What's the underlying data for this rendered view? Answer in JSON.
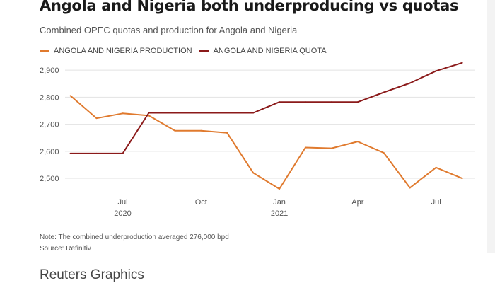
{
  "title": "Angola and Nigeria both underproducing vs quotas",
  "subtitle": "Combined OPEC quotas and production for Angola and Nigeria",
  "note": "Note: The combined underproduction averaged 276,000 bpd",
  "source": "Source: Refinitiv",
  "credit": "Reuters Graphics",
  "colors": {
    "production": "#e07a2e",
    "quota": "#8b1a1a",
    "grid": "#e2e2e2",
    "gutter": "#f3f3f3"
  },
  "chart_data": {
    "type": "line",
    "title": "Angola and Nigeria both underproducing vs quotas",
    "subtitle": "Combined OPEC quotas and production for Angola and Nigeria",
    "legend_placement": "top-left",
    "grid": true,
    "x_ticks": [
      {
        "label": "Jul",
        "sublabel": "2020",
        "index": 2
      },
      {
        "label": "Oct",
        "sublabel": "",
        "index": 5
      },
      {
        "label": "Jan",
        "sublabel": "2021",
        "index": 8
      },
      {
        "label": "Apr",
        "sublabel": "",
        "index": 11
      },
      {
        "label": "Jul",
        "sublabel": "",
        "index": 14
      }
    ],
    "y_ticks": [
      {
        "value": 2500,
        "label": "2,500"
      },
      {
        "value": 2600,
        "label": "2,600"
      },
      {
        "value": 2700,
        "label": "2,700"
      },
      {
        "value": 2800,
        "label": "2,800"
      },
      {
        "value": 2900,
        "label": "2,900"
      }
    ],
    "xlim": [
      -0.1,
      15.5
    ],
    "ylim": [
      2440,
      2950
    ],
    "series": [
      {
        "name": "ANGOLA AND NIGERIA PRODUCTION",
        "color": "#e07a2e",
        "x": [
          0,
          1,
          2,
          3,
          4,
          5,
          6,
          7,
          8,
          9,
          10,
          11,
          12,
          13,
          14,
          15
        ],
        "values": [
          2805,
          2722,
          2740,
          2732,
          2676,
          2676,
          2668,
          2520,
          2461,
          2614,
          2611,
          2636,
          2594,
          2465,
          2540,
          2500
        ]
      },
      {
        "name": "ANGOLA AND NIGERIA QUOTA",
        "color": "#8b1a1a",
        "x": [
          0,
          1,
          2,
          3,
          4,
          5,
          6,
          7,
          8,
          9,
          10,
          11,
          12,
          13,
          14,
          15
        ],
        "values": [
          2592,
          2592,
          2592,
          2742,
          2742,
          2742,
          2742,
          2742,
          2782,
          2782,
          2782,
          2782,
          2818,
          2852,
          2897,
          2927
        ]
      }
    ]
  }
}
